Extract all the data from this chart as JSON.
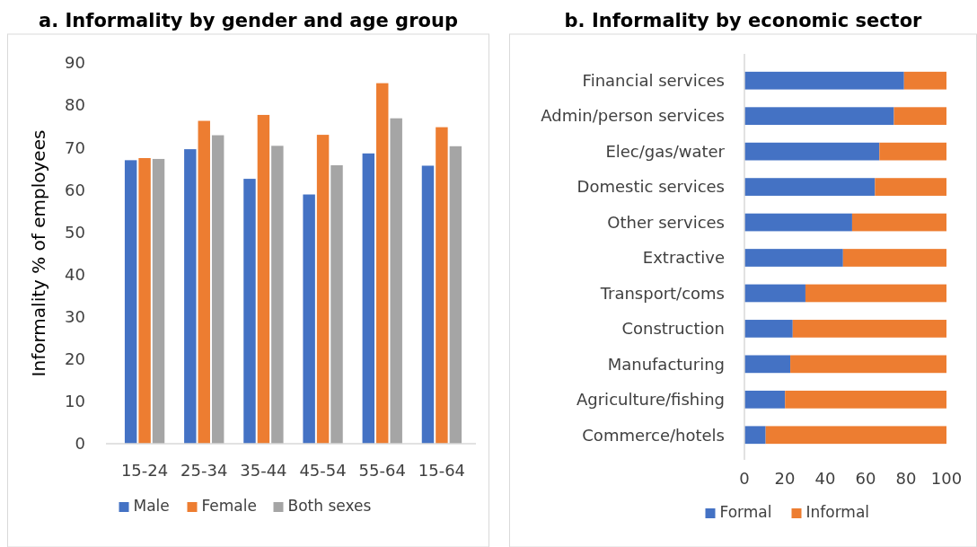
{
  "chart_data": [
    {
      "type": "bar",
      "title": "a. Informality by gender and age group",
      "ylabel": "Informality % of employees",
      "categories": [
        "15-24",
        "25-34",
        "35-44",
        "45-54",
        "55-64",
        "15-64"
      ],
      "series": [
        {
          "name": "Male",
          "color": "#4472c4",
          "values": [
            67.0,
            69.6,
            62.6,
            58.9,
            68.6,
            65.7
          ]
        },
        {
          "name": "Female",
          "color": "#ed7d31",
          "values": [
            67.5,
            76.3,
            77.7,
            73.0,
            85.2,
            74.8
          ]
        },
        {
          "name": "Both sexes",
          "color": "#a5a5a5",
          "values": [
            67.3,
            72.9,
            70.4,
            65.8,
            76.9,
            70.3
          ]
        }
      ],
      "ylim": [
        0,
        90
      ],
      "yticks": [
        0,
        10,
        20,
        30,
        40,
        50,
        60,
        70,
        80,
        90
      ],
      "grid": false,
      "legend": "bottom"
    },
    {
      "type": "bar",
      "title": "b.  Informality by economic sector",
      "orientation": "horizontal",
      "stacked": true,
      "categories": [
        "Financial services",
        "Admin/person services",
        "Elec/gas/water",
        "Domestic services",
        "Other services",
        "Extractive",
        "Transport/coms",
        "Construction",
        "Manufacturing",
        "Agriculture/fishing",
        "Commerce/hotels"
      ],
      "series": [
        {
          "name": "Formal",
          "color": "#4472c4",
          "values": [
            79.0,
            74.0,
            66.8,
            64.6,
            53.3,
            48.8,
            30.2,
            23.9,
            22.7,
            20.1,
            10.5
          ]
        },
        {
          "name": "Informal",
          "color": "#ed7d31",
          "values": [
            21.0,
            26.0,
            33.2,
            35.4,
            46.7,
            51.2,
            69.8,
            76.1,
            77.3,
            79.9,
            89.5
          ]
        }
      ],
      "xlim": [
        0,
        100
      ],
      "xticks": [
        0,
        20,
        40,
        60,
        80,
        100
      ],
      "grid": false,
      "legend": "bottom"
    }
  ]
}
